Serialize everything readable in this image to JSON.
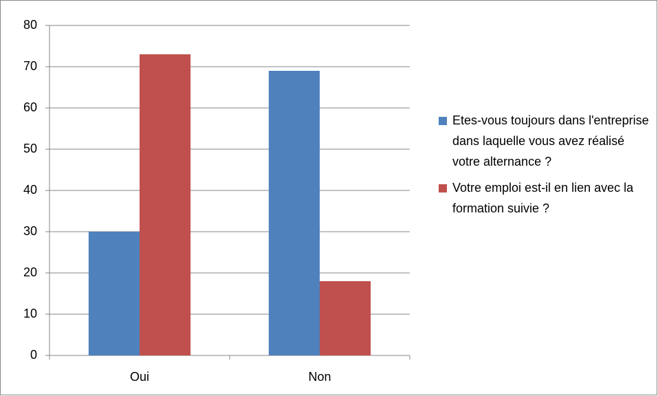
{
  "chart_data": {
    "type": "bar",
    "categories": [
      "Oui",
      "Non"
    ],
    "series": [
      {
        "name": "Etes-vous toujours dans l'entreprise dans laquelle vous avez réalisé votre alternance ?",
        "color": "#4f81bd",
        "values": [
          30,
          69
        ]
      },
      {
        "name": "Votre emploi est-il en lien avec la formation suivie ?",
        "color": "#c0504d",
        "values": [
          73,
          18
        ]
      }
    ],
    "ylim": [
      0,
      80
    ],
    "yticks": [
      0,
      10,
      20,
      30,
      40,
      50,
      60,
      70,
      80
    ],
    "grid": true,
    "legend": "right"
  }
}
